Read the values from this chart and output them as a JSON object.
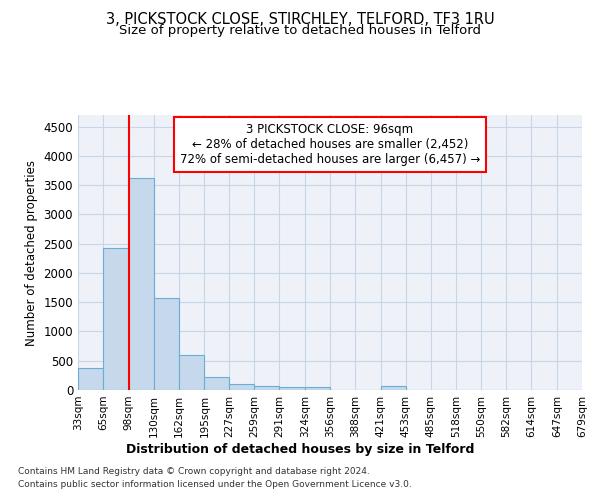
{
  "title": "3, PICKSTOCK CLOSE, STIRCHLEY, TELFORD, TF3 1RU",
  "subtitle": "Size of property relative to detached houses in Telford",
  "xlabel": "Distribution of detached houses by size in Telford",
  "ylabel": "Number of detached properties",
  "footnote1": "Contains HM Land Registry data © Crown copyright and database right 2024.",
  "footnote2": "Contains public sector information licensed under the Open Government Licence v3.0.",
  "annotation_line1": "3 PICKSTOCK CLOSE: 96sqm",
  "annotation_line2": "← 28% of detached houses are smaller (2,452)",
  "annotation_line3": "72% of semi-detached houses are larger (6,457) →",
  "bar_color": "#c5d8ec",
  "bar_edge_color": "#6aaed6",
  "red_line_x": 98,
  "bins": [
    33,
    65,
    98,
    130,
    162,
    195,
    227,
    259,
    291,
    324,
    356,
    388,
    421,
    453,
    485,
    518,
    550,
    582,
    614,
    647,
    679
  ],
  "bin_labels": [
    "33sqm",
    "65sqm",
    "98sqm",
    "130sqm",
    "162sqm",
    "195sqm",
    "227sqm",
    "259sqm",
    "291sqm",
    "324sqm",
    "356sqm",
    "388sqm",
    "421sqm",
    "453sqm",
    "485sqm",
    "518sqm",
    "550sqm",
    "582sqm",
    "614sqm",
    "647sqm",
    "679sqm"
  ],
  "bar_heights": [
    370,
    2420,
    3620,
    1580,
    600,
    230,
    110,
    75,
    50,
    50,
    0,
    0,
    60,
    0,
    0,
    0,
    0,
    0,
    0,
    0
  ],
  "ylim": [
    0,
    4700
  ],
  "yticks": [
    0,
    500,
    1000,
    1500,
    2000,
    2500,
    3000,
    3500,
    4000,
    4500
  ],
  "background_color": "#ffffff",
  "plot_bg_color": "#eef2f8",
  "grid_color": "#c8d4e8",
  "title_fontsize": 10.5,
  "subtitle_fontsize": 9.5,
  "annotation_fontsize": 8.5,
  "annotation_box_color": "white",
  "annotation_box_edge": "red"
}
